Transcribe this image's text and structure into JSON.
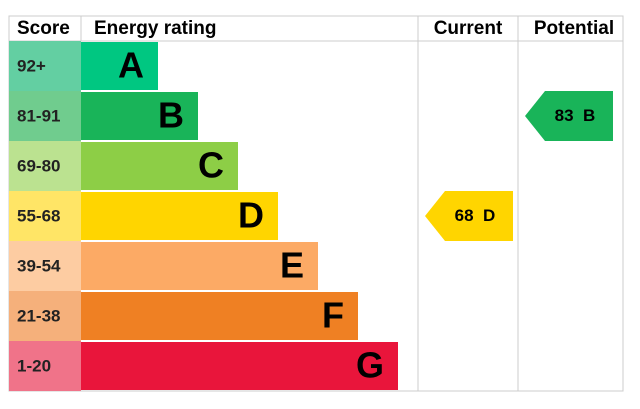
{
  "header": {
    "score": "Score",
    "rating": "Energy rating",
    "current": "Current",
    "potential": "Potential"
  },
  "bands": [
    {
      "score": "92+",
      "letter": "A",
      "color": "#00c781",
      "tint": "#63cfa2"
    },
    {
      "score": "81-91",
      "letter": "B",
      "color": "#19b459",
      "tint": "#70cc8e"
    },
    {
      "score": "69-80",
      "letter": "C",
      "color": "#8dce46",
      "tint": "#bbe290"
    },
    {
      "score": "55-68",
      "letter": "D",
      "color": "#ffd500",
      "tint": "#ffe566"
    },
    {
      "score": "39-54",
      "letter": "E",
      "color": "#fcaa65",
      "tint": "#fdcca2"
    },
    {
      "score": "21-38",
      "letter": "F",
      "color": "#ef8023",
      "tint": "#f5b07b"
    },
    {
      "score": "1-20",
      "letter": "G",
      "color": "#e9153b",
      "tint": "#f07389"
    }
  ],
  "current": {
    "score": 68,
    "letter": "D"
  },
  "potential": {
    "score": 83,
    "letter": "B"
  }
}
